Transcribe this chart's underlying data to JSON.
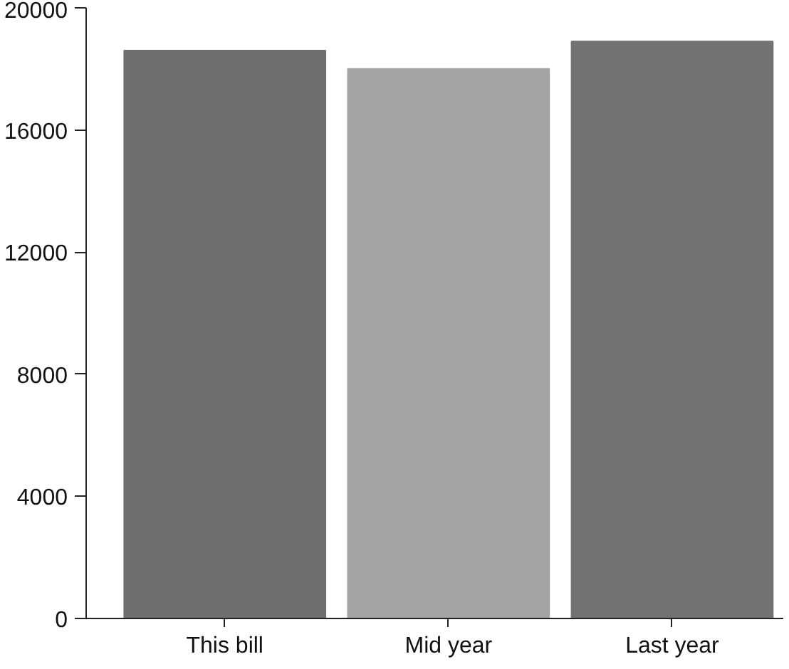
{
  "chart_data": {
    "type": "bar",
    "categories": [
      "This bill",
      "Mid year",
      "Last year"
    ],
    "values": [
      18600,
      18000,
      18900
    ],
    "colors": [
      "#6f6f6f",
      "#a3a3a3",
      "#727272"
    ],
    "ylim": [
      0,
      20000
    ],
    "yticks": [
      0,
      4000,
      8000,
      12000,
      16000,
      20000
    ],
    "grid": false
  }
}
